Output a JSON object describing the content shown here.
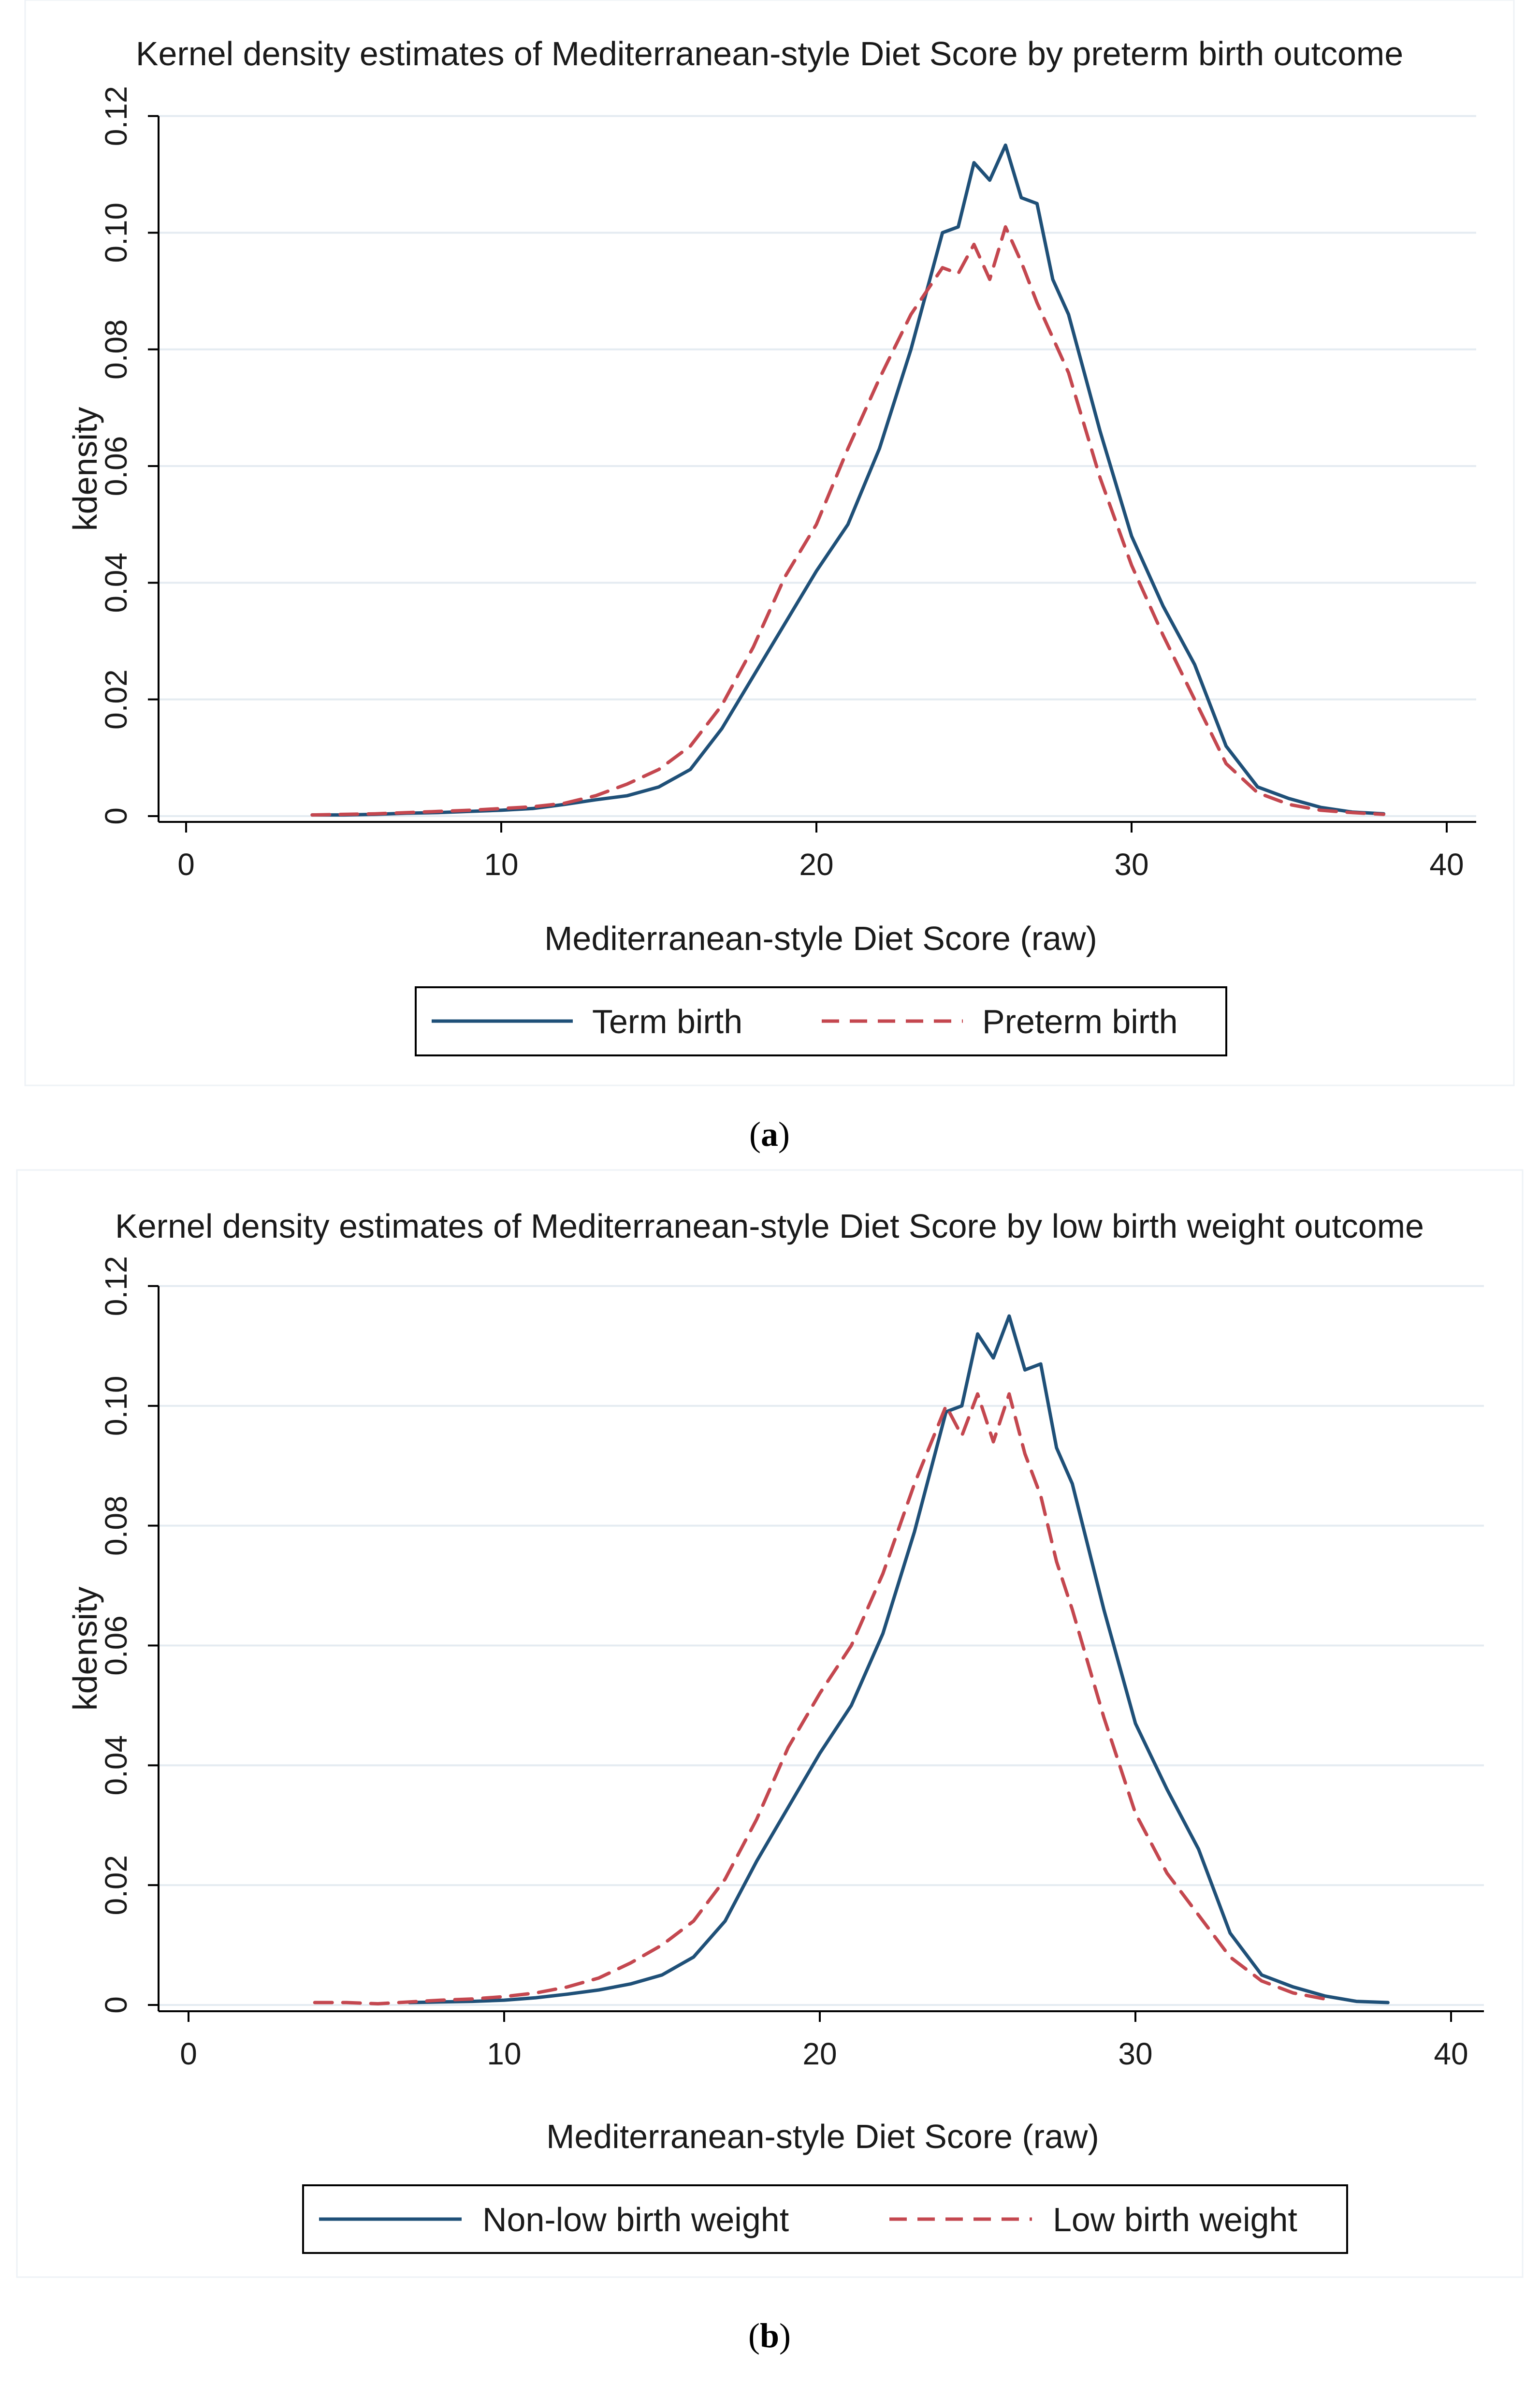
{
  "chart_data": [
    {
      "type": "line",
      "caption": "a",
      "title": "Kernel density estimates of Mediterranean-style Diet Score by preterm birth outcome",
      "xlabel": "Mediterranean-style Diet Score (raw)",
      "ylabel": "kdensity",
      "xlim": [
        0,
        40
      ],
      "ylim": [
        0,
        0.12
      ],
      "xticks": [
        0,
        10,
        20,
        30,
        40
      ],
      "yticks": [
        "0",
        "0.02",
        "0.04",
        "0.06",
        "0.08",
        "0.10",
        "0.12"
      ],
      "grid": true,
      "legend_position": "bottom",
      "series": [
        {
          "name": "Term birth",
          "color": "#1f5078",
          "dash": "solid",
          "x": [
            4,
            5,
            6,
            7,
            8,
            9,
            10,
            11,
            12,
            13,
            14,
            15,
            16,
            17,
            18,
            19,
            20,
            21,
            22,
            23,
            24,
            24.5,
            25,
            25.5,
            26,
            26.5,
            27,
            27.5,
            28,
            29,
            30,
            31,
            32,
            33,
            34,
            35,
            36,
            37,
            38
          ],
          "y": [
            0.0002,
            0.0002,
            0.0003,
            0.0005,
            0.0006,
            0.0008,
            0.001,
            0.0013,
            0.002,
            0.0028,
            0.0035,
            0.005,
            0.008,
            0.015,
            0.024,
            0.033,
            0.042,
            0.05,
            0.063,
            0.08,
            0.1,
            0.101,
            0.112,
            0.109,
            0.115,
            0.106,
            0.105,
            0.092,
            0.086,
            0.066,
            0.048,
            0.036,
            0.026,
            0.012,
            0.005,
            0.003,
            0.0015,
            0.0007,
            0.0004
          ]
        },
        {
          "name": "Preterm birth",
          "color": "#c4474f",
          "dash": "dashed",
          "x": [
            4,
            5,
            6,
            7,
            8,
            9,
            10,
            11,
            12,
            13,
            14,
            15,
            16,
            17,
            18,
            19,
            20,
            21,
            22,
            23,
            24,
            24.5,
            25,
            25.5,
            26,
            26.5,
            27,
            27.5,
            28,
            29,
            30,
            31,
            32,
            33,
            34,
            35,
            36,
            37,
            38
          ],
          "y": [
            0.0002,
            0.0003,
            0.0004,
            0.0006,
            0.0008,
            0.001,
            0.0013,
            0.0016,
            0.0022,
            0.0035,
            0.0055,
            0.008,
            0.012,
            0.019,
            0.029,
            0.041,
            0.05,
            0.063,
            0.075,
            0.086,
            0.094,
            0.093,
            0.098,
            0.092,
            0.101,
            0.095,
            0.088,
            0.082,
            0.076,
            0.058,
            0.043,
            0.031,
            0.02,
            0.009,
            0.004,
            0.002,
            0.001,
            0.0006,
            0.0003
          ]
        }
      ]
    },
    {
      "type": "line",
      "caption": "b",
      "title": "Kernel density estimates of Mediterranean-style Diet Score by low birth weight outcome",
      "xlabel": "Mediterranean-style Diet Score (raw)",
      "ylabel": "kdensity",
      "xlim": [
        0,
        40
      ],
      "ylim": [
        0,
        0.12
      ],
      "xticks": [
        0,
        10,
        20,
        30,
        40
      ],
      "yticks": [
        "0",
        "0.02",
        "0.04",
        "0.06",
        "0.08",
        "0.10",
        "0.12"
      ],
      "grid": true,
      "legend_position": "bottom",
      "series": [
        {
          "name": "Non-low birth weight",
          "color": "#1f5078",
          "dash": "solid",
          "x": [
            7,
            8,
            9,
            10,
            11,
            12,
            13,
            14,
            15,
            16,
            17,
            18,
            19,
            20,
            21,
            22,
            23,
            24,
            24.5,
            25,
            25.5,
            26,
            26.5,
            27,
            27.5,
            28,
            29,
            30,
            31,
            32,
            33,
            34,
            35,
            36,
            37,
            38
          ],
          "y": [
            0.0004,
            0.0005,
            0.0006,
            0.0008,
            0.0012,
            0.0018,
            0.0025,
            0.0035,
            0.005,
            0.008,
            0.014,
            0.024,
            0.033,
            0.042,
            0.05,
            0.062,
            0.079,
            0.099,
            0.1,
            0.112,
            0.108,
            0.115,
            0.106,
            0.107,
            0.093,
            0.087,
            0.066,
            0.047,
            0.036,
            0.026,
            0.012,
            0.005,
            0.003,
            0.0015,
            0.0006,
            0.0004
          ]
        },
        {
          "name": "Low birth weight",
          "color": "#c4474f",
          "dash": "dashed",
          "x": [
            4,
            5,
            6,
            7,
            8,
            9,
            10,
            11,
            12,
            13,
            14,
            15,
            16,
            17,
            18,
            19,
            20,
            21,
            22,
            23,
            24,
            24.5,
            25,
            25.5,
            26,
            26.5,
            27,
            27.5,
            28,
            29,
            30,
            31,
            32,
            33,
            34,
            35,
            36
          ],
          "y": [
            0.0004,
            0.0004,
            0.0002,
            0.0005,
            0.0008,
            0.001,
            0.0014,
            0.002,
            0.003,
            0.0045,
            0.007,
            0.01,
            0.014,
            0.021,
            0.031,
            0.043,
            0.052,
            0.06,
            0.072,
            0.087,
            0.1,
            0.095,
            0.102,
            0.094,
            0.102,
            0.092,
            0.085,
            0.074,
            0.066,
            0.048,
            0.032,
            0.022,
            0.015,
            0.008,
            0.004,
            0.002,
            0.001
          ]
        }
      ]
    }
  ]
}
